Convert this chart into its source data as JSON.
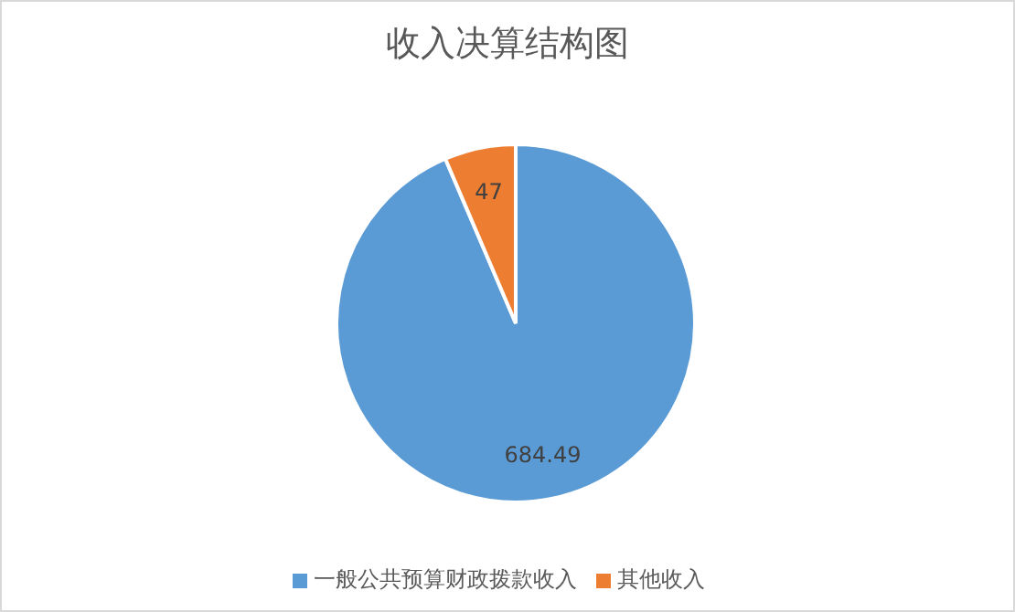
{
  "chart_data": {
    "type": "pie",
    "title": "收入决算结构图",
    "categories": [
      "一般公共预算财政拨款收入",
      "其他收入"
    ],
    "values": [
      684.49,
      47
    ],
    "colors": [
      "#5b9bd5",
      "#ed7d31"
    ],
    "data_labels": true,
    "legend": "bottom"
  }
}
